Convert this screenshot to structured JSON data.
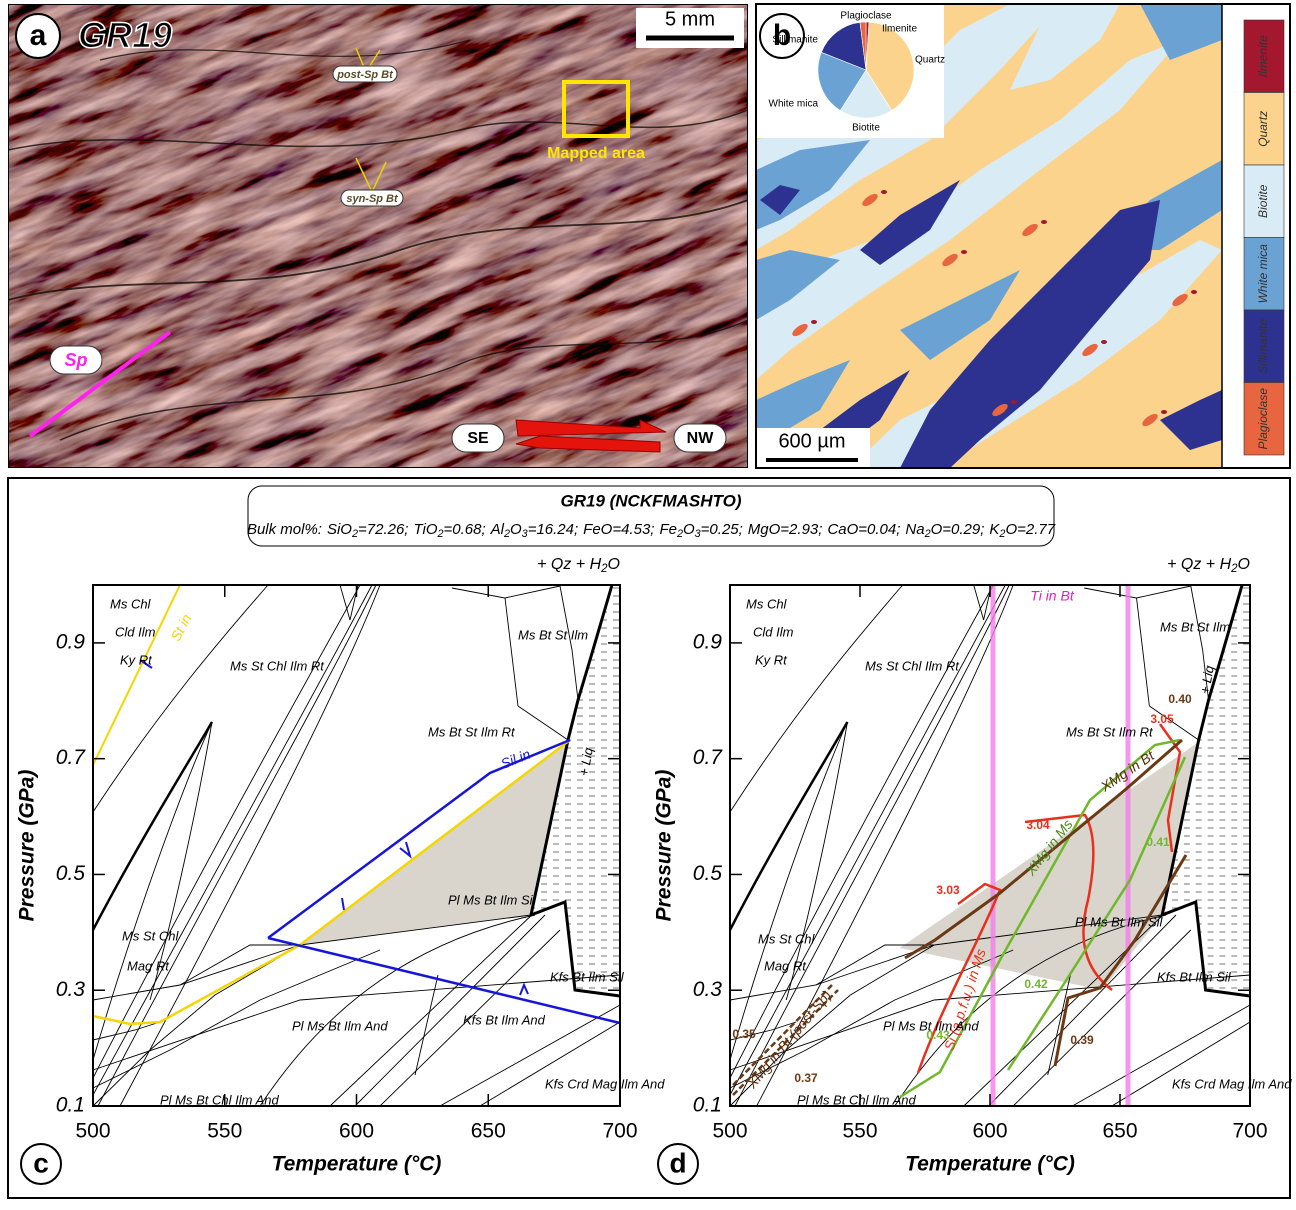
{
  "panel_a": {
    "label": "a",
    "sample": "GR19",
    "scale": "5 mm",
    "annotations": [
      "post-Sp Bt",
      "syn-Sp Bt",
      "Mapped area",
      "Sp",
      "SE",
      "NW"
    ]
  },
  "panel_b": {
    "label": "b",
    "scale": "600 µm"
  },
  "header": {
    "title": "GR19 (NCKFMASHTO)",
    "bulk_prefix": "Bulk mol%:",
    "oxides": [
      [
        "SiO",
        "2",
        "=72.26;"
      ],
      [
        "TiO",
        "2",
        "=0.68;"
      ],
      [
        "Al",
        "2",
        "O",
        "3",
        "=16.24;"
      ],
      [
        "FeO=4.53;"
      ],
      [
        "Fe",
        "2",
        "O",
        "3",
        "=0.25;"
      ],
      [
        "MgO=2.93;"
      ],
      [
        "CaO=0.04;"
      ],
      [
        "Na",
        "2",
        "O=0.29;"
      ],
      [
        "K",
        "2",
        "O=2.77"
      ]
    ]
  },
  "chart_data": [
    {
      "type": "pie",
      "labels": [
        "Ilmenite",
        "Quartz",
        "Biotite",
        "White mica",
        "Sillimanite",
        "Plagioclase"
      ],
      "values": [
        1,
        40,
        18,
        22,
        17,
        2
      ],
      "colors": [
        "#a3172f",
        "#fbd38d",
        "#d9ecf5",
        "#6aa2d3",
        "#2d318f",
        "#e7663f"
      ]
    },
    {
      "type": "pseudosection",
      "panel_label": "c",
      "x_label": "Temperature (°C)",
      "y_label": "Pressure (GPa)",
      "xlim": [
        500,
        700
      ],
      "ylim": [
        0.1,
        1.0
      ],
      "xticks": [
        500,
        550,
        600,
        650,
        700
      ],
      "yticks": [
        0.1,
        0.3,
        0.5,
        0.7,
        0.9
      ],
      "system_note": [
        "+ Qz + H",
        "2",
        "O"
      ],
      "field_labels": [
        "Ms Chl",
        "Cld Ilm",
        "Ky Rt",
        "Ms St Chl Ilm Rt",
        "Ms Bt St Ilm",
        "Ms Bt St Ilm Rt",
        "Pl Ms Bt Ilm Sil",
        "Ms St Chl",
        "Mag Rt",
        "Pl Ms Bt Ilm And",
        "Kfs Bt Ilm Sil",
        "Kfs Bt Ilm And",
        "Kfs Crd Mag Ilm And",
        "Pl Ms Bt Chl Ilm And",
        "+ Liq"
      ],
      "line_labels": [
        "St in",
        "Sil in"
      ]
    },
    {
      "type": "pseudosection",
      "panel_label": "d",
      "x_label": "Temperature (°C)",
      "y_label": "Pressure (GPa)",
      "xlim": [
        500,
        700
      ],
      "ylim": [
        0.1,
        1.0
      ],
      "xticks": [
        500,
        550,
        600,
        650,
        700
      ],
      "yticks": [
        0.1,
        0.3,
        0.5,
        0.7,
        0.9
      ],
      "system_note": [
        "+ Qz + H",
        "2",
        "O"
      ],
      "field_labels": [
        "Ms Chl",
        "Cld Ilm",
        "Ky Rt",
        "Ms St Chl Ilm Rt",
        "Ms Bt St Ilm",
        "Ms Bt St Ilm Rt",
        "Pl Ms Bt Ilm Sil",
        "Ms St Chl",
        "Mag Rt",
        "Pl Ms Bt Ilm And",
        "Kfs Bt Ilm Sil",
        "Kfs Crd Mag Ilm And",
        "Pl Ms Bt Chl Ilm And",
        "+ Liq"
      ],
      "line_labels": [
        "Ti in Bt",
        "XMg in Bt",
        "XMg in Ms",
        "Si (a.p.f.u.) in Ms",
        "XMg in Bt (post-Sp)"
      ],
      "isopleth_labels": [
        "3.03",
        "3.04",
        "3.05",
        "0.41",
        "0.42",
        "0.43",
        "0.35",
        "0.37",
        "0.39",
        "0.40"
      ]
    }
  ]
}
